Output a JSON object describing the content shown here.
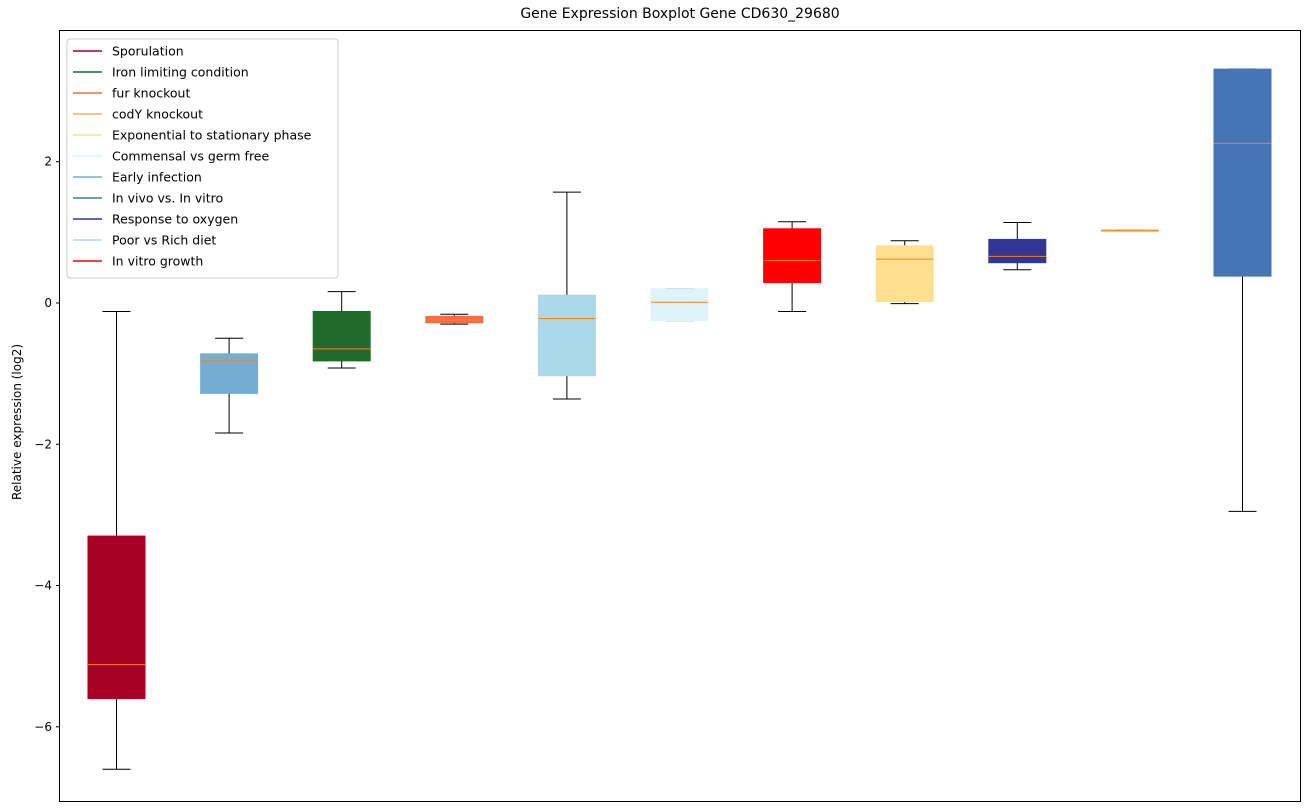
{
  "chart_data": {
    "type": "boxplot",
    "title": "Gene Expression Boxplot Gene CD630_29680",
    "xlabel": "",
    "ylabel": "Relative expression (log2)",
    "ylim": [
      -7.05,
      3.85
    ],
    "y_ticks": [
      -6,
      -4,
      -2,
      0,
      2
    ],
    "y_tick_labels": [
      "−6",
      "−4",
      "−2",
      "0",
      "2"
    ],
    "x_ticks_visible": false,
    "grid": false,
    "legend_position": "upper-left",
    "median_color": "#ff7f0e",
    "legend": [
      {
        "name": "Sporulation",
        "color": "#a50026"
      },
      {
        "name": "Iron limiting condition",
        "color": "#1f6b2b"
      },
      {
        "name": "fur knockout",
        "color": "#f46d43"
      },
      {
        "name": "codY knockout",
        "color": "#fdae61"
      },
      {
        "name": "Exponential to stationary phase",
        "color": "#fee090"
      },
      {
        "name": "Commensal vs germ free",
        "color": "#e0f3f8"
      },
      {
        "name": "Early infection",
        "color": "#74add1"
      },
      {
        "name": "In vivo vs. In vitro",
        "color": "#4575b4"
      },
      {
        "name": "Response to oxygen",
        "color": "#313695"
      },
      {
        "name": "Poor vs Rich diet",
        "color": "#abd9e9"
      },
      {
        "name": "In vitro growth",
        "color": "#ff0000"
      }
    ],
    "boxes": [
      {
        "color": "#a50026",
        "whisker_low": -6.6,
        "q1": -5.6,
        "median": -5.12,
        "q3": -3.3,
        "whisker_high": -0.12
      },
      {
        "color": "#74add1",
        "whisker_low": -1.84,
        "q1": -1.28,
        "median": -0.82,
        "q3": -0.72,
        "whisker_high": -0.5
      },
      {
        "color": "#1f6b2b",
        "whisker_low": -0.92,
        "q1": -0.82,
        "median": -0.65,
        "q3": -0.12,
        "whisker_high": 0.16
      },
      {
        "color": "#f46d43",
        "whisker_low": -0.3,
        "q1": -0.28,
        "median": -0.24,
        "q3": -0.19,
        "whisker_high": -0.16
      },
      {
        "color": "#abd9e9",
        "whisker_low": -1.36,
        "q1": -1.03,
        "median": -0.22,
        "q3": 0.11,
        "whisker_high": 1.57
      },
      {
        "color": "#e0f3f8",
        "whisker_low": -0.25,
        "q1": -0.25,
        "median": 0.01,
        "q3": 0.2,
        "whisker_high": 0.2
      },
      {
        "color": "#ff0000",
        "whisker_low": -0.12,
        "q1": 0.29,
        "median": 0.6,
        "q3": 1.05,
        "whisker_high": 1.15
      },
      {
        "color": "#fee090",
        "whisker_low": -0.01,
        "q1": 0.02,
        "median": 0.62,
        "q3": 0.81,
        "whisker_high": 0.88
      },
      {
        "color": "#313695",
        "whisker_low": 0.47,
        "q1": 0.57,
        "median": 0.66,
        "q3": 0.9,
        "whisker_high": 1.14
      },
      {
        "color": "#fdae61",
        "whisker_low": 1.02,
        "q1": 1.02,
        "median": 1.03,
        "q3": 1.03,
        "whisker_high": 1.03
      },
      {
        "color": "#4575b4",
        "whisker_low": -2.95,
        "q1": 0.38,
        "median": 2.26,
        "q3": 3.31,
        "whisker_high": 3.31
      }
    ]
  }
}
